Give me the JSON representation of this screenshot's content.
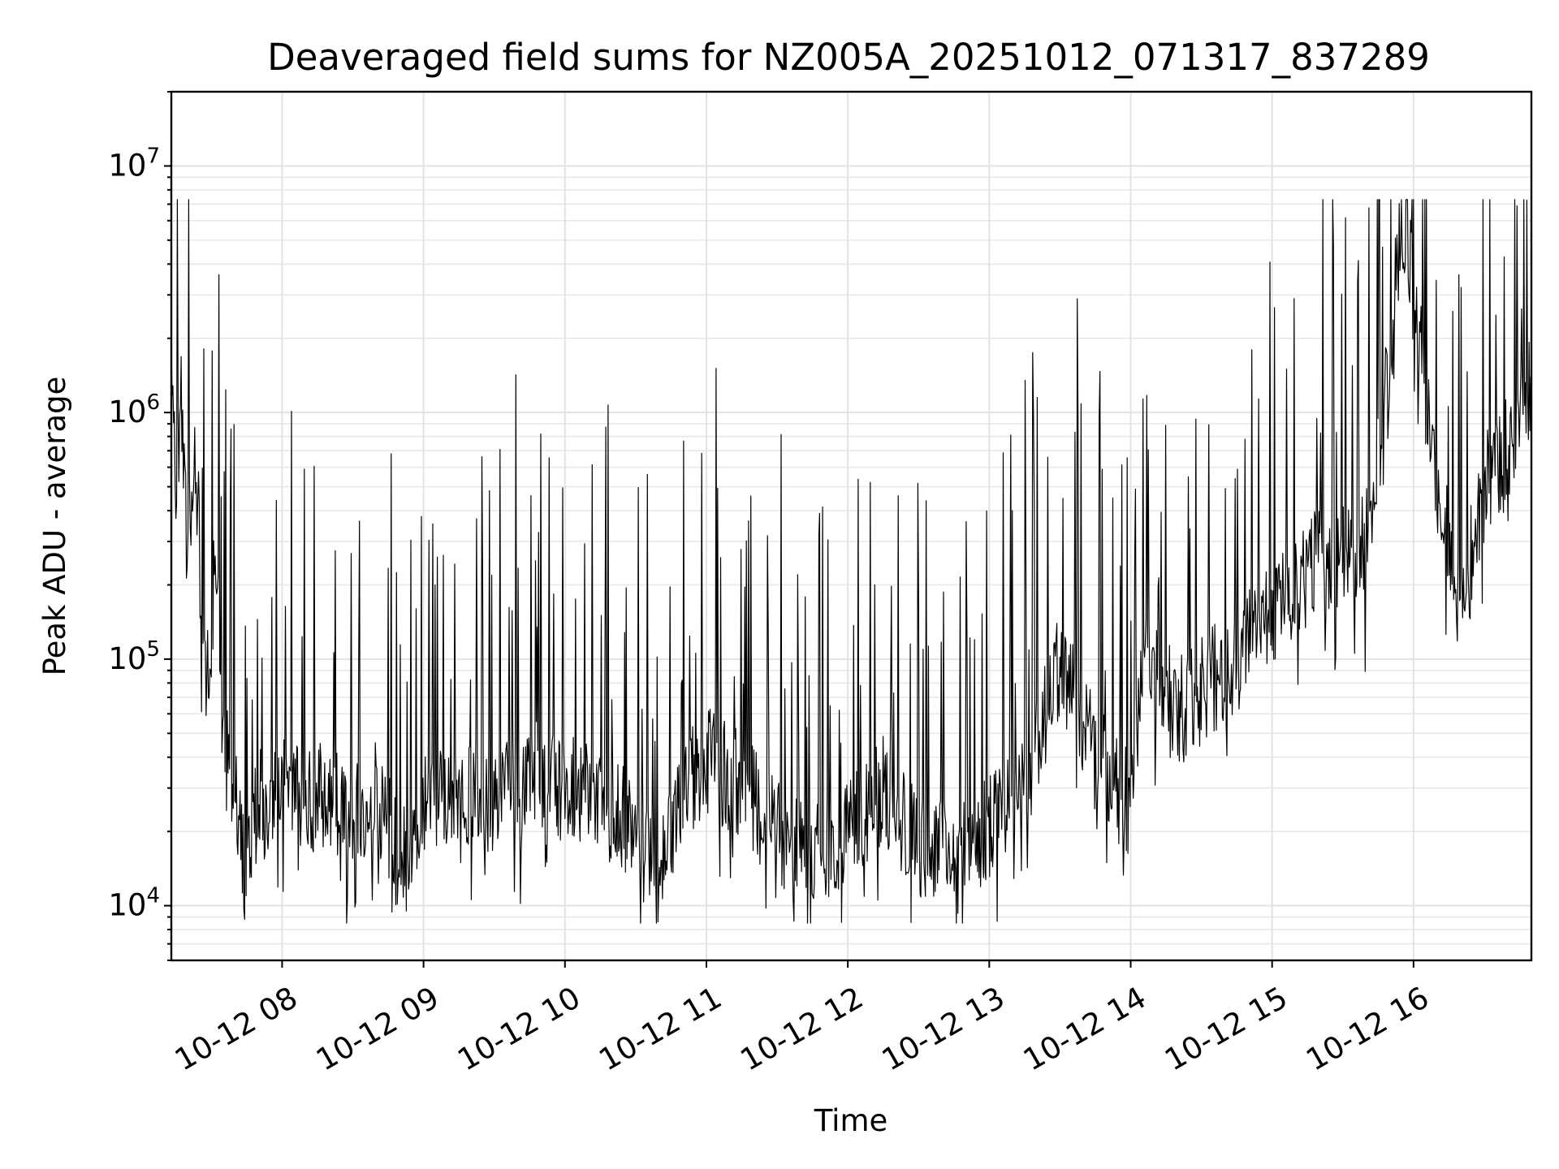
{
  "chart_data": {
    "type": "line",
    "title": "Deaveraged field sums for NZ005A_20251012_071317_837289",
    "xlabel": "Time",
    "ylabel": "Peak ADU - average",
    "yscale": "log",
    "grid": true,
    "x_range": [
      "2025-10-12 07:13",
      "2025-10-12 16:50"
    ],
    "ylim": [
      6000,
      20000000
    ],
    "x_ticks": [
      {
        "time": "2025-10-12 08:00",
        "label": "10-12 08"
      },
      {
        "time": "2025-10-12 09:00",
        "label": "10-12 09"
      },
      {
        "time": "2025-10-12 10:00",
        "label": "10-12 10"
      },
      {
        "time": "2025-10-12 11:00",
        "label": "10-12 11"
      },
      {
        "time": "2025-10-12 12:00",
        "label": "10-12 12"
      },
      {
        "time": "2025-10-12 13:00",
        "label": "10-12 13"
      },
      {
        "time": "2025-10-12 14:00",
        "label": "10-12 14"
      },
      {
        "time": "2025-10-12 15:00",
        "label": "10-12 15"
      },
      {
        "time": "2025-10-12 16:00",
        "label": "10-12 16"
      }
    ],
    "y_ticks": [
      {
        "value": 10000,
        "base": "10",
        "exp": "4"
      },
      {
        "value": 100000,
        "base": "10",
        "exp": "5"
      },
      {
        "value": 1000000,
        "base": "10",
        "exp": "6"
      },
      {
        "value": 10000000,
        "base": "10",
        "exp": "7"
      }
    ],
    "series": [
      {
        "color": "#000000",
        "points": [
          [
            "2025-10-12 07:13",
            1900000
          ],
          [
            "2025-10-12 07:15",
            450000
          ],
          [
            "2025-10-12 07:17",
            1200000
          ],
          [
            "2025-10-12 07:20",
            250000
          ],
          [
            "2025-10-12 07:23",
            900000
          ],
          [
            "2025-10-12 07:26",
            150000
          ],
          [
            "2025-10-12 07:29",
            70000
          ],
          [
            "2025-10-12 07:32",
            300000
          ],
          [
            "2025-10-12 07:35",
            40000
          ],
          [
            "2025-10-12 07:40",
            35000
          ],
          [
            "2025-10-12 07:45",
            12000
          ],
          [
            "2025-10-12 07:50",
            30000
          ],
          [
            "2025-10-12 07:55",
            20000
          ],
          [
            "2025-10-12 08:00",
            40000
          ],
          [
            "2025-10-12 08:10",
            25000
          ],
          [
            "2025-10-12 08:20",
            30000
          ],
          [
            "2025-10-12 08:30",
            22000
          ],
          [
            "2025-10-12 08:40",
            28000
          ],
          [
            "2025-10-12 08:50",
            15000
          ],
          [
            "2025-10-12 09:00",
            25000
          ],
          [
            "2025-10-12 09:15",
            30000
          ],
          [
            "2025-10-12 09:30",
            27000
          ],
          [
            "2025-10-12 09:45",
            35000
          ],
          [
            "2025-10-12 10:00",
            30000
          ],
          [
            "2025-10-12 10:15",
            28000
          ],
          [
            "2025-10-12 10:30",
            20000
          ],
          [
            "2025-10-12 10:40",
            12000
          ],
          [
            "2025-10-12 10:50",
            30000
          ],
          [
            "2025-10-12 11:00",
            40000
          ],
          [
            "2025-10-12 11:15",
            30000
          ],
          [
            "2025-10-12 11:30",
            20000
          ],
          [
            "2025-10-12 11:45",
            15000
          ],
          [
            "2025-10-12 12:00",
            20000
          ],
          [
            "2025-10-12 12:15",
            30000
          ],
          [
            "2025-10-12 12:30",
            18000
          ],
          [
            "2025-10-12 12:45",
            15000
          ],
          [
            "2025-10-12 13:00",
            20000
          ],
          [
            "2025-10-12 13:15",
            30000
          ],
          [
            "2025-10-12 13:30",
            100000
          ],
          [
            "2025-10-12 13:45",
            40000
          ],
          [
            "2025-10-12 14:00",
            25000
          ],
          [
            "2025-10-12 14:05",
            100000
          ],
          [
            "2025-10-12 14:20",
            60000
          ],
          [
            "2025-10-12 14:40",
            90000
          ],
          [
            "2025-10-12 15:00",
            150000
          ],
          [
            "2025-10-12 15:20",
            250000
          ],
          [
            "2025-10-12 15:40",
            300000
          ],
          [
            "2025-10-12 15:50",
            1500000
          ],
          [
            "2025-10-12 15:55",
            7000000
          ],
          [
            "2025-10-12 16:00",
            3000000
          ],
          [
            "2025-10-12 16:10",
            500000
          ],
          [
            "2025-10-12 16:20",
            150000
          ],
          [
            "2025-10-12 16:30",
            500000
          ],
          [
            "2025-10-12 16:40",
            700000
          ],
          [
            "2025-10-12 16:50",
            1300000
          ]
        ]
      }
    ]
  }
}
